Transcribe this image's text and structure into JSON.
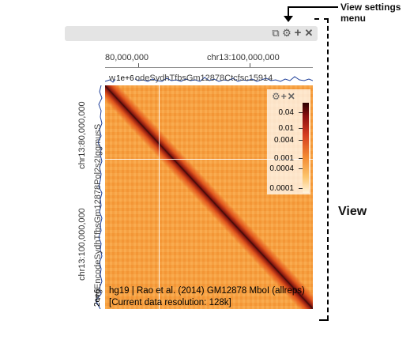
{
  "annotations": {
    "view_settings_label": "View settings menu",
    "view_label": "View"
  },
  "header": {
    "icons": [
      "copy-icon",
      "gear-icon",
      "plus-icon",
      "close-icon"
    ]
  },
  "top_axis": {
    "labels": [
      "80,000,000",
      "chr13:100,000,000"
    ]
  },
  "top_track": {
    "label": "wgEncodeSydhTfbsGm12878Ctcfsc15914",
    "scale": "1e+6"
  },
  "left_axis": {
    "labels": [
      "chr13:80,000,000",
      "chr13:100,000,000"
    ]
  },
  "left_track": {
    "label": "wgEncodeSydhTfbsGm12878Pol2s2IggmusS",
    "scale": "2e+6"
  },
  "colorbar": {
    "labels": [
      "0.04",
      "0.01",
      "0.004",
      "0.001",
      "0.0004",
      "0.0001"
    ],
    "icons": [
      "gear-icon",
      "plus-icon",
      "close-icon"
    ]
  },
  "heatmap": {
    "info_line": "hg19 | Rao et al. (2014) GM12878 MboI (allreps)",
    "resolution": "[Current data resolution: 128k]"
  }
}
